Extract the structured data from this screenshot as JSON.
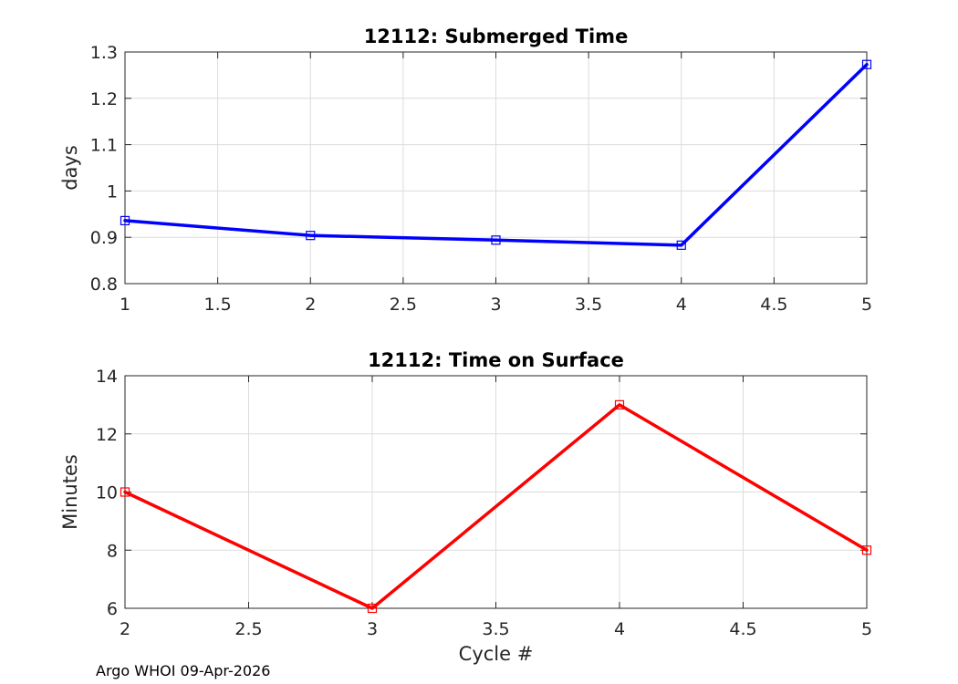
{
  "chart_data": [
    {
      "type": "line",
      "title": "12112: Submerged Time",
      "xlabel": "",
      "ylabel": "days",
      "x": [
        1,
        2,
        3,
        4,
        5
      ],
      "series": [
        {
          "name": "Submerged Time",
          "color": "#0000ff",
          "marker": "square",
          "values": [
            0.936,
            0.904,
            0.894,
            0.883,
            1.273
          ]
        }
      ],
      "xlim": [
        1,
        5
      ],
      "ylim": [
        0.8,
        1.3
      ],
      "xticks": [
        1,
        1.5,
        2,
        2.5,
        3,
        3.5,
        4,
        4.5,
        5
      ],
      "xtick_labels": [
        "1",
        "1.5",
        "2",
        "2.5",
        "3",
        "3.5",
        "4",
        "4.5",
        "5"
      ],
      "yticks": [
        0.8,
        0.9,
        1,
        1.1,
        1.2,
        1.3
      ],
      "ytick_labels": [
        "0.8",
        "0.9",
        "1",
        "1.1",
        "1.2",
        "1.3"
      ],
      "grid": true
    },
    {
      "type": "line",
      "title": "12112: Time on Surface",
      "xlabel": "Cycle #",
      "ylabel": "Minutes",
      "x": [
        2,
        3,
        4,
        5
      ],
      "series": [
        {
          "name": "Time on Surface",
          "color": "#ff0000",
          "marker": "square",
          "values": [
            10,
            6,
            13,
            8
          ]
        }
      ],
      "xlim": [
        2,
        5
      ],
      "ylim": [
        6,
        14
      ],
      "xticks": [
        2,
        2.5,
        3,
        3.5,
        4,
        4.5,
        5
      ],
      "xtick_labels": [
        "2",
        "2.5",
        "3",
        "3.5",
        "4",
        "4.5",
        "5"
      ],
      "yticks": [
        6,
        8,
        10,
        12,
        14
      ],
      "ytick_labels": [
        "6",
        "8",
        "10",
        "12",
        "14"
      ],
      "grid": true
    }
  ],
  "footer": "Argo WHOI 09-Apr-2026"
}
